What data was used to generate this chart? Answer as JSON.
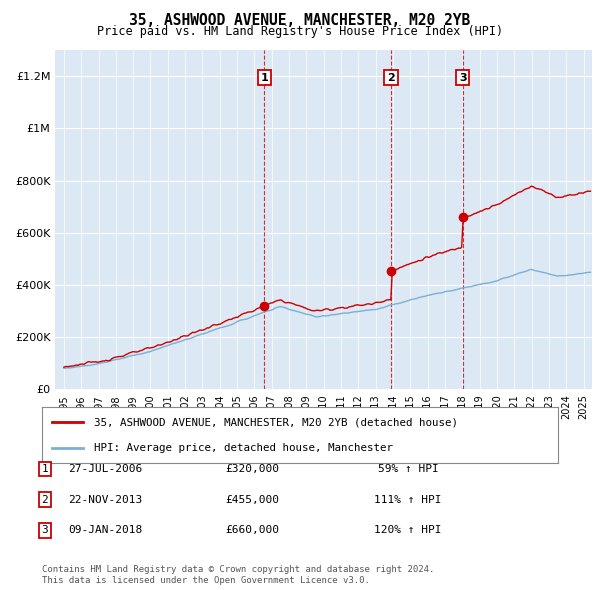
{
  "title": "35, ASHWOOD AVENUE, MANCHESTER, M20 2YB",
  "subtitle": "Price paid vs. HM Land Registry's House Price Index (HPI)",
  "property_label": "35, ASHWOOD AVENUE, MANCHESTER, M20 2YB (detached house)",
  "hpi_label": "HPI: Average price, detached house, Manchester",
  "property_color": "#cc0000",
  "hpi_color": "#7bafd4",
  "background_color": "#dce9f5",
  "transactions": [
    {
      "num": 1,
      "date": "27-JUL-2006",
      "price": 320000,
      "pct": "59%",
      "x": 2006.57
    },
    {
      "num": 2,
      "date": "22-NOV-2013",
      "price": 455000,
      "pct": "111%",
      "x": 2013.89
    },
    {
      "num": 3,
      "date": "09-JAN-2018",
      "price": 660000,
      "pct": "120%",
      "x": 2018.03
    }
  ],
  "footer": "Contains HM Land Registry data © Crown copyright and database right 2024.\nThis data is licensed under the Open Government Licence v3.0.",
  "ylim": [
    0,
    1300000
  ],
  "xlim": [
    1994.5,
    2025.5
  ]
}
